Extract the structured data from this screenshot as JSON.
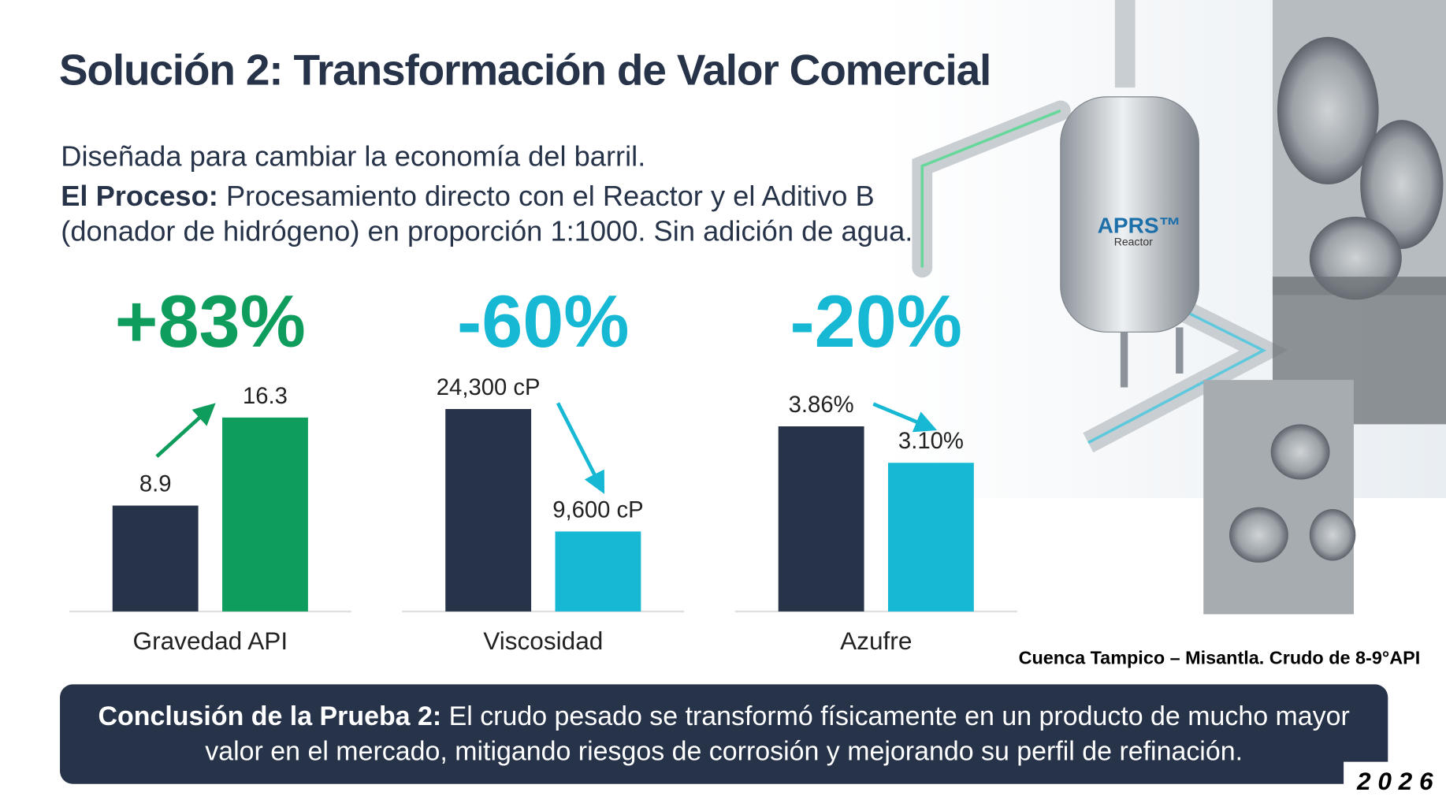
{
  "title": "Solución 2: Transformación de Valor Comercial",
  "intro": "Diseñada para cambiar la economía del barril.",
  "process": {
    "label": "El Proceso:",
    "text": "Procesamiento directo con el Reactor y el Aditivo B (donador de hidrógeno) en proporción 1:1000. Sin adición de agua."
  },
  "chart_data": [
    {
      "type": "bar",
      "annotation": "+83%",
      "annotation_color": "#0e9d5c",
      "xlabel": "Gravedad API",
      "values": [
        8.9,
        16.3
      ],
      "colors": [
        "#263348",
        "#0e9d5c"
      ],
      "ylim": [
        0,
        20
      ]
    },
    {
      "type": "bar",
      "annotation": "-60%",
      "annotation_color": "#16b8d4",
      "xlabel": "Viscosidad",
      "values": [
        24300,
        9600
      ],
      "value_labels": [
        "24,300 cP",
        "9,600 cP"
      ],
      "colors": [
        "#263348",
        "#16b8d4"
      ],
      "ylim": [
        0,
        30000
      ]
    },
    {
      "type": "bar",
      "annotation": "-20%",
      "annotation_color": "#16b8d4",
      "xlabel": "Azufre",
      "values": [
        3.86,
        3.1
      ],
      "value_labels": [
        "3.86%",
        "3.10%"
      ],
      "colors": [
        "#263348",
        "#16b8d4"
      ],
      "ylim": [
        0,
        5
      ]
    }
  ],
  "image_label": {
    "brand": "APRS™",
    "sub": "Reactor"
  },
  "source_note": "Cuenca Tampico – Misantla. Crudo de 8-9°API",
  "conclusion": {
    "label": "Conclusión de la Prueba 2:",
    "text": "El crudo pesado se transformó físicamente en un producto de mucho mayor valor en el mercado, mitigando riesgos de corrosión y mejorando su perfil de refinación."
  },
  "year": "2 0 2 6"
}
